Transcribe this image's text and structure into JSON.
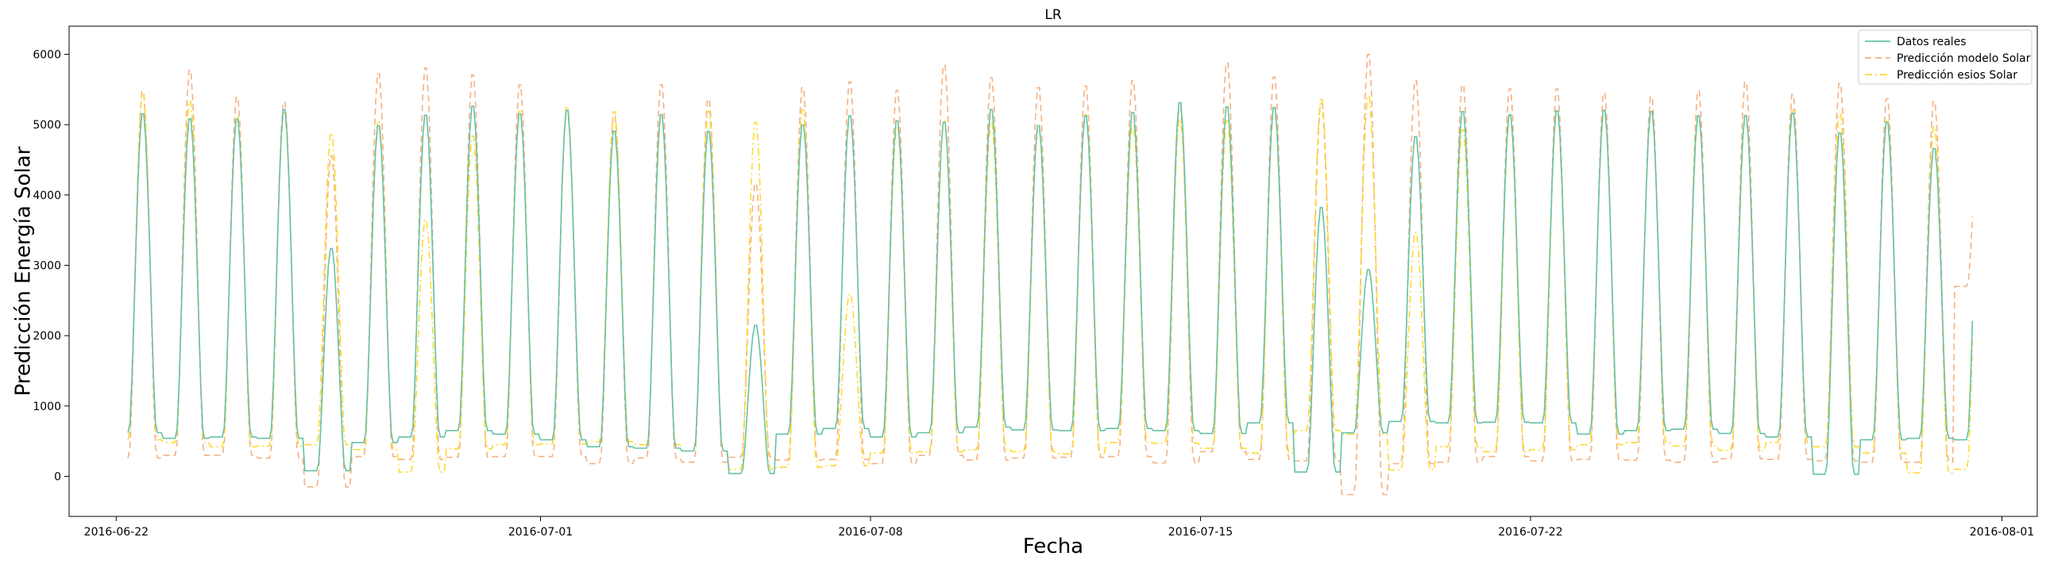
{
  "chart_data": {
    "type": "line",
    "title": "LR",
    "xlabel": "Fecha",
    "ylabel": "Predicción Energía Solar",
    "x_ticks": [
      "2016-06-22",
      "2016-07-01",
      "2016-07-08",
      "2016-07-15",
      "2016-07-22",
      "2016-08-01"
    ],
    "y_ticks": [
      0,
      1000,
      2000,
      3000,
      4000,
      5000,
      6000
    ],
    "x_range": [
      "2016-06-21T00:00",
      "2016-08-01T18:00"
    ],
    "ylim": [
      -570,
      6400
    ],
    "x_data_range": [
      "2016-06-22T06:00",
      "2016-07-31T09:00"
    ],
    "legend_position": "upper-right",
    "grid": false,
    "series": [
      {
        "name": "Datos reales",
        "color": "#66c2a5",
        "style": "solid",
        "daily_peaks": [
          5200,
          5130,
          5120,
          5260,
          3270,
          5030,
          5180,
          5310,
          5200,
          5250,
          4950,
          5190,
          4950,
          2170,
          5040,
          5170,
          5100,
          5080,
          5260,
          5030,
          5170,
          5220,
          5360,
          5300,
          5290,
          3860,
          2960,
          4870,
          5230,
          5180,
          5240,
          5250,
          5230,
          5170,
          5170,
          5210,
          4930,
          5080,
          4700,
          5160
        ],
        "daily_floors": [
          620,
          540,
          560,
          540,
          80,
          480,
          560,
          650,
          600,
          520,
          420,
          400,
          360,
          40,
          600,
          680,
          560,
          620,
          700,
          660,
          650,
          680,
          650,
          610,
          760,
          60,
          620,
          780,
          760,
          770,
          760,
          600,
          650,
          670,
          610,
          560,
          30,
          520,
          540,
          520
        ]
      },
      {
        "name": "Predicción modelo Solar",
        "color": "#f4b183",
        "style": "dashed",
        "daily_peaks": [
          5520,
          5830,
          5440,
          5370,
          4600,
          5780,
          5860,
          5760,
          5620,
          5250,
          5180,
          5620,
          5410,
          4200,
          5580,
          5660,
          5540,
          5900,
          5720,
          5580,
          5600,
          5680,
          5300,
          5930,
          5730,
          5350,
          6060,
          5680,
          5620,
          5560,
          5560,
          5500,
          5450,
          5530,
          5660,
          5480,
          5640,
          5420,
          5380,
          5420
        ],
        "daily_floors": [
          260,
          300,
          300,
          260,
          -150,
          280,
          240,
          270,
          280,
          280,
          180,
          260,
          200,
          270,
          230,
          240,
          180,
          300,
          230,
          260,
          270,
          280,
          190,
          350,
          240,
          220,
          -260,
          180,
          200,
          280,
          220,
          240,
          230,
          200,
          250,
          240,
          220,
          200,
          200,
          2700
        ]
      },
      {
        "name": "Predicción esios Solar",
        "color": "#ffd92f",
        "style": "dashdot",
        "daily_peaks": [
          5480,
          5380,
          5150,
          5220,
          4920,
          5100,
          3680,
          4880,
          5260,
          5300,
          5230,
          5150,
          5240,
          5080,
          5260,
          2610,
          5020,
          5100,
          5070,
          5020,
          5190,
          5030,
          5120,
          5100,
          5290,
          5400,
          5450,
          3500,
          4970,
          5190,
          5260,
          5250,
          5230,
          5160,
          5180,
          5250,
          5200,
          5120,
          5020,
          5100
        ],
        "daily_floors": [
          520,
          480,
          420,
          430,
          450,
          380,
          60,
          390,
          450,
          460,
          490,
          450,
          360,
          100,
          130,
          150,
          330,
          350,
          380,
          350,
          320,
          480,
          470,
          400,
          330,
          650,
          600,
          90,
          420,
          350,
          380,
          450,
          480,
          430,
          370,
          480,
          420,
          330,
          50,
          100
        ]
      }
    ]
  }
}
